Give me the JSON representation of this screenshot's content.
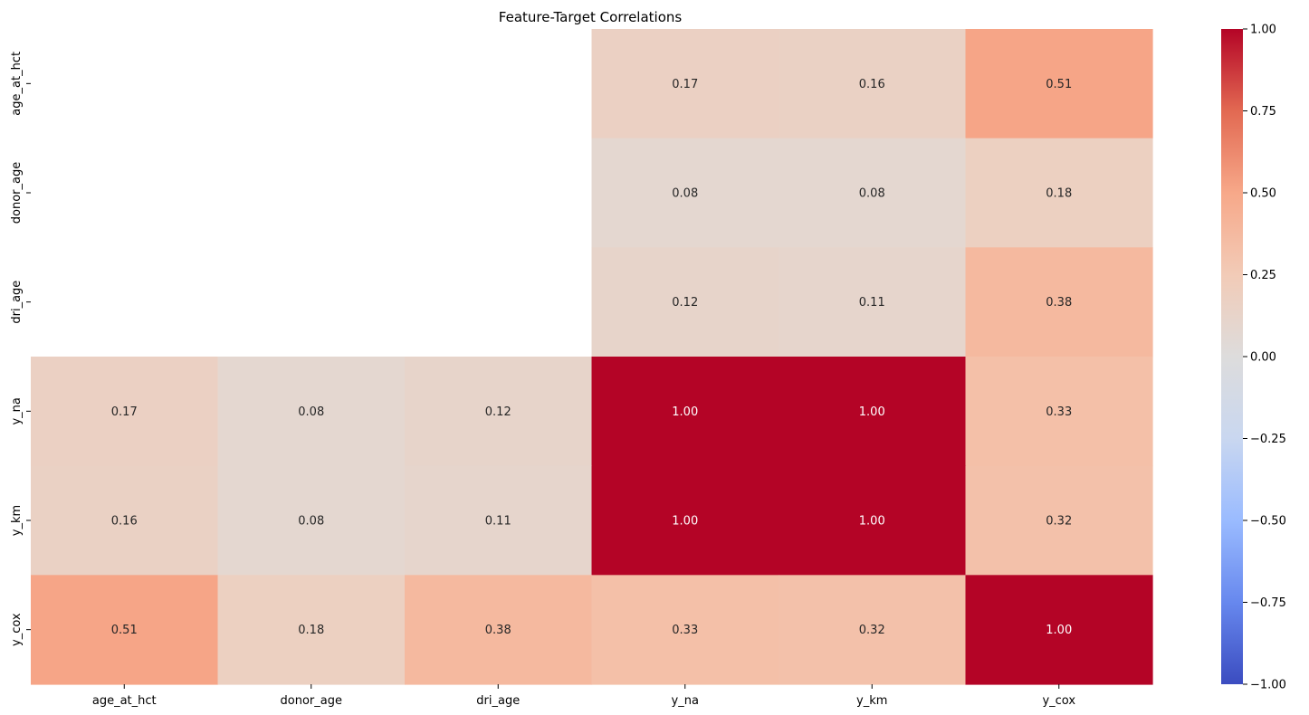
{
  "chart_data": {
    "type": "heatmap",
    "title": "Feature-Target Correlations",
    "x_labels": [
      "age_at_hct",
      "donor_age",
      "dri_age",
      "y_na",
      "y_km",
      "y_cox"
    ],
    "y_labels": [
      "age_at_hct",
      "donor_age",
      "dri_age",
      "y_na",
      "y_km",
      "y_cox"
    ],
    "values": [
      [
        null,
        null,
        null,
        0.17,
        0.16,
        0.51
      ],
      [
        null,
        null,
        null,
        0.08,
        0.08,
        0.18
      ],
      [
        null,
        null,
        null,
        0.12,
        0.11,
        0.38
      ],
      [
        0.17,
        0.08,
        0.12,
        1.0,
        1.0,
        0.33
      ],
      [
        0.16,
        0.08,
        0.11,
        1.0,
        1.0,
        0.32
      ],
      [
        0.51,
        0.18,
        0.38,
        0.33,
        0.32,
        1.0
      ]
    ],
    "cell_labels": [
      [
        null,
        null,
        null,
        "0.17",
        "0.16",
        "0.51"
      ],
      [
        null,
        null,
        null,
        "0.08",
        "0.08",
        "0.18"
      ],
      [
        null,
        null,
        null,
        "0.12",
        "0.11",
        "0.38"
      ],
      [
        "0.17",
        "0.08",
        "0.12",
        "1.00",
        "1.00",
        "0.33"
      ],
      [
        "0.16",
        "0.08",
        "0.11",
        "1.00",
        "1.00",
        "0.32"
      ],
      [
        "0.51",
        "0.18",
        "0.38",
        "0.33",
        "0.32",
        "1.00"
      ]
    ],
    "colormap": "coolwarm",
    "colormap_stops": [
      "#3b4cc0",
      "#6788ee",
      "#9abbff",
      "#c9d7f0",
      "#dddcdc",
      "#f2cbb7",
      "#f7a889",
      "#e26952",
      "#b40426"
    ],
    "vmin": -1.0,
    "vmax": 1.0,
    "colorbar_ticks": [
      1.0,
      0.75,
      0.5,
      0.25,
      0.0,
      -0.25,
      -0.5,
      -0.75,
      -1.0
    ],
    "colorbar_tick_labels": [
      "1.00",
      "0.75",
      "0.50",
      "0.25",
      "0.00",
      "−0.25",
      "−0.50",
      "−0.75",
      "−1.00"
    ]
  }
}
